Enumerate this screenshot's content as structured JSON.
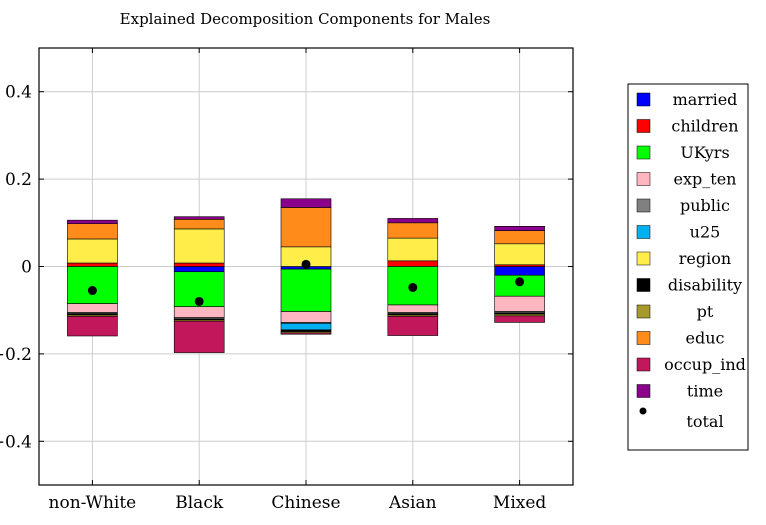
{
  "chart_data": {
    "type": "bar",
    "stacked": true,
    "title": "Explained Decomposition Components for Males",
    "xlabel": "",
    "ylabel": "",
    "ylim": [
      -0.5,
      0.5
    ],
    "yticks": [
      -0.4,
      -0.2,
      0,
      0.2,
      0.4
    ],
    "ytick_labels": [
      "−0.4",
      "−0.2",
      "0",
      "0.2",
      "0.4"
    ],
    "grid": true,
    "legend_position": "right",
    "categories": [
      "non-White",
      "Black",
      "Chinese",
      "Asian",
      "Mixed"
    ],
    "series": [
      {
        "name": "married",
        "color": "#0000ff",
        "values": [
          0.0,
          -0.012,
          -0.006,
          0.0,
          -0.02
        ]
      },
      {
        "name": "children",
        "color": "#ff0000",
        "values": [
          0.008,
          0.008,
          0.0,
          0.013,
          0.004
        ]
      },
      {
        "name": "UKyrs",
        "color": "#00ff00",
        "values": [
          -0.085,
          -0.08,
          -0.097,
          -0.088,
          -0.048
        ]
      },
      {
        "name": "exp_ten",
        "color": "#ffb6c1",
        "values": [
          -0.02,
          -0.025,
          -0.025,
          -0.017,
          -0.035
        ]
      },
      {
        "name": "public",
        "color": "#808080",
        "values": [
          -0.003,
          -0.003,
          -0.002,
          -0.003,
          -0.003
        ]
      },
      {
        "name": "u25",
        "color": "#00b0f0",
        "values": [
          0.0,
          0.0,
          -0.015,
          0.0,
          0.0
        ]
      },
      {
        "name": "region",
        "color": "#ffee4a",
        "values": [
          0.055,
          0.078,
          0.045,
          0.052,
          0.048
        ]
      },
      {
        "name": "disability",
        "color": "#000000",
        "values": [
          -0.003,
          -0.002,
          -0.004,
          -0.003,
          -0.003
        ]
      },
      {
        "name": "pt",
        "color": "#a89a2a",
        "values": [
          -0.003,
          -0.003,
          -0.003,
          -0.003,
          -0.004
        ]
      },
      {
        "name": "educ",
        "color": "#ff8c1a",
        "values": [
          0.035,
          0.022,
          0.09,
          0.035,
          0.03
        ]
      },
      {
        "name": "occup_ind",
        "color": "#c2185b",
        "values": [
          -0.045,
          -0.072,
          -0.003,
          -0.044,
          -0.015
        ]
      },
      {
        "name": "time",
        "color": "#8b008b",
        "values": [
          0.008,
          0.006,
          0.02,
          0.01,
          0.01
        ]
      }
    ],
    "total": {
      "name": "total",
      "values": [
        -0.055,
        -0.08,
        0.005,
        -0.048,
        -0.035
      ]
    }
  }
}
